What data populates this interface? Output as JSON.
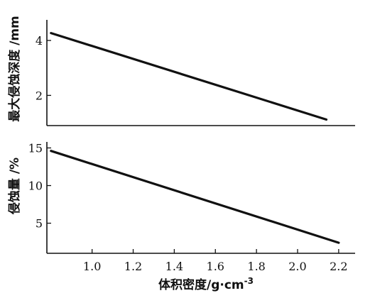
{
  "chart_data": [
    {
      "type": "line",
      "ylabel": "最大侵蚀深度 /mm",
      "xlim": [
        0.78,
        2.28
      ],
      "ylim": [
        0.9,
        4.75
      ],
      "yticks": [
        2,
        4
      ],
      "yticklabels": [
        "2",
        "4"
      ],
      "series": [
        {
          "x": [
            0.8,
            2.14
          ],
          "y": [
            4.27,
            1.12
          ]
        }
      ]
    },
    {
      "type": "line",
      "ylabel": "侵蚀量 /%",
      "xlabel": "体积密度/g·cm",
      "xlabel_superscript": "-3",
      "xlim": [
        0.78,
        2.28
      ],
      "ylim": [
        1.0,
        15.8
      ],
      "yticks": [
        5,
        10,
        15
      ],
      "yticklabels": [
        "5",
        "10",
        "15"
      ],
      "xticks": [
        1.0,
        1.2,
        1.4,
        1.6,
        1.8,
        2.0,
        2.2
      ],
      "xticklabels": [
        "1.0",
        "1.2",
        "1.4",
        "1.6",
        "1.8",
        "2.0",
        "2.2"
      ],
      "series": [
        {
          "x": [
            0.8,
            2.2
          ],
          "y": [
            14.6,
            2.4
          ]
        }
      ]
    }
  ]
}
